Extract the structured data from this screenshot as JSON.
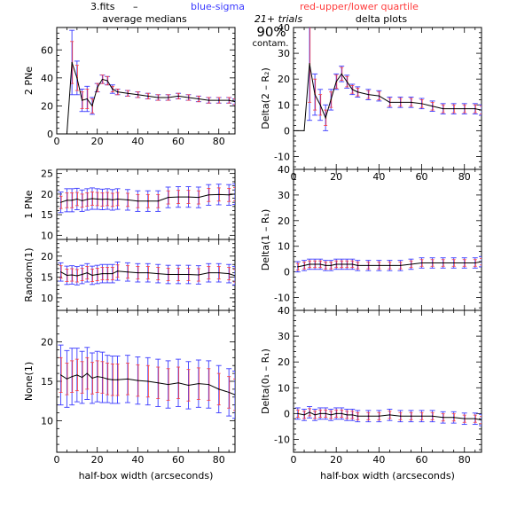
{
  "header": {
    "file_label": "3.fits",
    "dash": "–",
    "blue_label": "blue-sigma",
    "red_label": "red-upper/lower quartile",
    "left_title": "average medians",
    "right_title": "delta plots",
    "trials": "21+ trials",
    "contam_pct": "90%",
    "contam_word": "contam."
  },
  "colors": {
    "median": "#000000",
    "sigma": "#3a3aff",
    "quartile": "#ff3b3b",
    "grid": "#000000",
    "background": "#ffffff"
  },
  "chart_data": [
    {
      "type": "line",
      "panel": "left-1",
      "ylabel": "2 PNe",
      "xlim": [
        0,
        88
      ],
      "ylim": [
        0,
        76
      ],
      "yticks": [
        0,
        20,
        40,
        60
      ],
      "xticks": [
        0,
        20,
        40,
        60,
        80
      ],
      "x_ticklabels_shown": true,
      "x": [
        5,
        7.5,
        10,
        12.5,
        15,
        17.5,
        20,
        22.5,
        25,
        27.5,
        30,
        35,
        40,
        45,
        50,
        55,
        60,
        65,
        70,
        75,
        80,
        85,
        88
      ],
      "median": [
        0,
        51,
        40,
        24,
        25,
        20,
        33,
        39,
        38,
        32,
        30,
        29,
        28,
        27,
        26,
        26,
        27,
        26,
        25,
        24,
        24,
        24,
        23
      ],
      "sigma": [
        0,
        23,
        12,
        8,
        9,
        6,
        3,
        3,
        3,
        3,
        2,
        2,
        2,
        2,
        2,
        2,
        2,
        2,
        2,
        2,
        2,
        2,
        2
      ],
      "quartile": [
        0,
        15,
        9,
        6,
        7,
        5,
        3,
        3,
        3,
        2,
        2,
        2,
        2,
        2,
        2,
        2,
        2,
        2,
        2,
        2,
        2,
        2,
        2
      ]
    },
    {
      "type": "line",
      "panel": "left-2",
      "ylabel": "1 PNe",
      "xlim": [
        0,
        88
      ],
      "ylim": [
        9,
        26
      ],
      "yticks": [
        10,
        15,
        20,
        25
      ],
      "xticks": [
        0,
        20,
        40,
        60,
        80
      ],
      "x_ticklabels_shown": false,
      "x": [
        2,
        5,
        7.5,
        10,
        12.5,
        15,
        17.5,
        20,
        22.5,
        25,
        27.5,
        30,
        35,
        40,
        45,
        50,
        55,
        60,
        65,
        70,
        75,
        80,
        85,
        88
      ],
      "median": [
        18,
        18.5,
        18.5,
        18.8,
        18.4,
        18.7,
        18.9,
        18.8,
        18.7,
        18.8,
        18.6,
        18.8,
        18.6,
        18.3,
        18.3,
        18.3,
        19.2,
        19.3,
        19.3,
        19.2,
        19.8,
        19.9,
        19.8,
        20
      ],
      "sigma": [
        2.5,
        2.8,
        2.8,
        2.6,
        2.6,
        2.6,
        2.6,
        2.5,
        2.5,
        2.5,
        2.5,
        2.5,
        2.5,
        2.5,
        2.5,
        2.5,
        2.5,
        2.5,
        2.5,
        2.5,
        2.5,
        2.5,
        2.5,
        2.5
      ],
      "quartile": [
        1.5,
        1.8,
        1.8,
        1.6,
        1.6,
        1.6,
        1.6,
        1.6,
        1.6,
        1.6,
        1.6,
        1.6,
        1.6,
        1.6,
        1.6,
        1.6,
        1.6,
        1.6,
        1.6,
        1.6,
        1.6,
        1.6,
        1.6,
        1.6
      ]
    },
    {
      "type": "line",
      "panel": "left-3",
      "ylabel": "Random(1)",
      "xlim": [
        0,
        88
      ],
      "ylim": [
        7,
        24
      ],
      "yticks": [
        10,
        15,
        20
      ],
      "xticks": [
        0,
        20,
        40,
        60,
        80
      ],
      "x_ticklabels_shown": false,
      "x": [
        2,
        5,
        7.5,
        10,
        12.5,
        15,
        17.5,
        20,
        22.5,
        25,
        27.5,
        30,
        35,
        40,
        45,
        50,
        55,
        60,
        65,
        70,
        75,
        80,
        85,
        88
      ],
      "median": [
        16.2,
        15.4,
        15.5,
        15.3,
        15.6,
        16.0,
        15.4,
        15.6,
        15.8,
        15.8,
        15.8,
        16.4,
        16.2,
        16.0,
        16.0,
        15.8,
        15.6,
        15.6,
        15.6,
        15.5,
        16.0,
        16.0,
        15.8,
        15.3
      ],
      "sigma": [
        2.2,
        2.2,
        2.2,
        2.2,
        2.2,
        2.2,
        2.2,
        2.2,
        2.2,
        2.2,
        2.2,
        2.2,
        2.2,
        2.2,
        2.2,
        2.2,
        2.2,
        2.2,
        2.2,
        2.2,
        2.2,
        2.2,
        2.2,
        2.2
      ],
      "quartile": [
        1.5,
        1.5,
        1.5,
        1.5,
        1.5,
        1.5,
        1.5,
        1.5,
        1.5,
        1.5,
        1.5,
        1.5,
        1.5,
        1.5,
        1.5,
        1.5,
        1.5,
        1.5,
        1.5,
        1.5,
        1.5,
        1.5,
        1.5,
        1.5
      ]
    },
    {
      "type": "line",
      "panel": "left-4",
      "ylabel": "None(1)",
      "xlim": [
        0,
        88
      ],
      "ylim": [
        6,
        24
      ],
      "yticks": [
        10,
        15,
        20
      ],
      "xticks": [
        0,
        20,
        40,
        60,
        80
      ],
      "x_ticklabels_shown": true,
      "xlabel": "half-box width (arcseconds)",
      "x": [
        2,
        5,
        7.5,
        10,
        12.5,
        15,
        17.5,
        20,
        22.5,
        25,
        27.5,
        30,
        35,
        40,
        45,
        50,
        55,
        60,
        65,
        70,
        75,
        80,
        85,
        88
      ],
      "median": [
        15.8,
        15.3,
        15.6,
        15.8,
        15.5,
        16.0,
        15.4,
        15.6,
        15.5,
        15.3,
        15.2,
        15.2,
        15.3,
        15.1,
        15.0,
        14.8,
        14.6,
        14.8,
        14.5,
        14.7,
        14.6,
        14.0,
        13.6,
        13.3
      ],
      "sigma": [
        3.8,
        3.6,
        3.6,
        3.4,
        3.3,
        3.3,
        3.2,
        3.2,
        3.2,
        3.0,
        3.0,
        3.0,
        3.0,
        3.0,
        3.0,
        3.0,
        3.0,
        3.0,
        3.0,
        3.0,
        3.0,
        3.0,
        3.0,
        3.0
      ],
      "quartile": [
        2.2,
        2.0,
        2.0,
        2.0,
        2.0,
        2.0,
        2.0,
        2.0,
        2.0,
        2.0,
        2.0,
        2.0,
        2.0,
        2.0,
        2.0,
        2.0,
        2.0,
        2.0,
        2.0,
        2.0,
        2.0,
        2.0,
        2.0,
        2.0
      ]
    },
    {
      "type": "line",
      "panel": "right-1",
      "ylabel": "Delta(2 – R₂)",
      "xlim": [
        0,
        88
      ],
      "ylim": [
        -15,
        40
      ],
      "yticks": [
        -10,
        0,
        10,
        20,
        30,
        40
      ],
      "xticks": [
        0,
        20,
        40,
        60,
        80
      ],
      "x_ticklabels_shown": true,
      "x": [
        0,
        5,
        7.5,
        10,
        12.5,
        15,
        17.5,
        20,
        22.5,
        25,
        27.5,
        30,
        35,
        40,
        45,
        50,
        55,
        60,
        65,
        70,
        75,
        80,
        85,
        88
      ],
      "median": [
        0,
        0,
        26,
        14,
        10,
        5,
        12,
        19,
        22,
        19,
        16,
        15,
        14,
        13.5,
        11,
        11,
        11,
        10.5,
        9.5,
        8.5,
        8.5,
        8.5,
        8.5,
        8
      ],
      "sigma": [
        0,
        0,
        22,
        8,
        6,
        5,
        4,
        3,
        3,
        2.5,
        2,
        2,
        2,
        2,
        2,
        2,
        2,
        2,
        2,
        2,
        2,
        2,
        2,
        2
      ],
      "quartile": [
        0,
        0,
        15,
        6,
        4,
        3,
        3,
        2.5,
        2.5,
        2,
        1.5,
        1.5,
        1.5,
        1.5,
        1.5,
        1.5,
        1.5,
        1.5,
        1.5,
        1.5,
        1.5,
        1.5,
        1.5,
        1.5
      ]
    },
    {
      "type": "line",
      "panel": "right-2",
      "ylabel": "Delta(1 – R₁)",
      "xlim": [
        0,
        88
      ],
      "ylim": [
        -15,
        40
      ],
      "yticks": [
        -10,
        0,
        10,
        20,
        30,
        40
      ],
      "xticks": [
        0,
        20,
        40,
        60,
        80
      ],
      "x_ticklabels_shown": false,
      "x": [
        2,
        5,
        7.5,
        10,
        12.5,
        15,
        17.5,
        20,
        22.5,
        25,
        27.5,
        30,
        35,
        40,
        45,
        50,
        55,
        60,
        65,
        70,
        75,
        80,
        85,
        88
      ],
      "median": [
        2,
        2.5,
        3,
        3,
        3,
        2.5,
        2.5,
        3,
        3,
        3,
        3,
        2.5,
        2.5,
        2.5,
        2.5,
        2.5,
        3,
        3.5,
        3.5,
        3.5,
        3.5,
        3.5,
        3.5,
        4
      ],
      "sigma": [
        2,
        2,
        2,
        2,
        2,
        2,
        2,
        2,
        2,
        2,
        2,
        2,
        2,
        2,
        2,
        2,
        2,
        2,
        2,
        2,
        2,
        2,
        2,
        2
      ],
      "quartile": [
        1.3,
        1.3,
        1.3,
        1.3,
        1.3,
        1.3,
        1.3,
        1.3,
        1.3,
        1.3,
        1.3,
        1.3,
        1.3,
        1.3,
        1.3,
        1.3,
        1.3,
        1.3,
        1.3,
        1.3,
        1.3,
        1.3,
        1.3,
        1.3
      ]
    },
    {
      "type": "line",
      "panel": "right-3",
      "ylabel": "Delta(0₁ – R₁)",
      "xlim": [
        0,
        88
      ],
      "ylim": [
        -15,
        40
      ],
      "yticks": [
        -10,
        0,
        10,
        20,
        30,
        40
      ],
      "xticks": [
        0,
        20,
        40,
        60,
        80
      ],
      "x_ticklabels_shown": true,
      "xlabel": "half-box width (arcseconds)",
      "x": [
        2,
        5,
        7.5,
        10,
        12.5,
        15,
        17.5,
        20,
        22.5,
        25,
        27.5,
        30,
        35,
        40,
        45,
        50,
        55,
        60,
        65,
        70,
        75,
        80,
        85,
        88
      ],
      "median": [
        0,
        -0.5,
        0.5,
        -0.5,
        0,
        0,
        -0.5,
        0,
        0,
        -0.5,
        -0.5,
        -1,
        -1,
        -1,
        -0.5,
        -1,
        -1,
        -1,
        -1,
        -1.5,
        -1.5,
        -2,
        -2,
        -2.5
      ],
      "sigma": [
        2.2,
        2.2,
        2.2,
        2.2,
        2.2,
        2.2,
        2.2,
        2.2,
        2.2,
        2.2,
        2.2,
        2.2,
        2.2,
        2.2,
        2.2,
        2.2,
        2.2,
        2.2,
        2.2,
        2.2,
        2.2,
        2.2,
        2.2,
        2.2
      ],
      "quartile": [
        1.4,
        1.4,
        1.4,
        1.4,
        1.4,
        1.4,
        1.4,
        1.4,
        1.4,
        1.4,
        1.4,
        1.4,
        1.4,
        1.4,
        1.4,
        1.4,
        1.4,
        1.4,
        1.4,
        1.4,
        1.4,
        1.4,
        1.4,
        1.4
      ]
    }
  ]
}
